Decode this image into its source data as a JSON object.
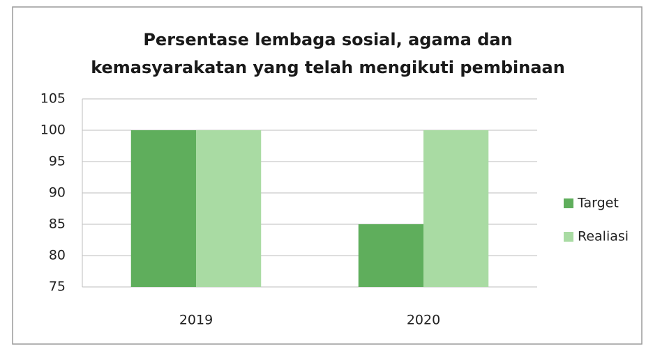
{
  "chart_data": {
    "type": "bar",
    "title": [
      "Persentase lembaga sosial, agama dan",
      "kemasyarakatan yang telah mengikuti pembinaan"
    ],
    "categories": [
      "2019",
      "2020"
    ],
    "series": [
      {
        "name": "Target",
        "color": "#5fae5c",
        "values": [
          100,
          85
        ]
      },
      {
        "name": "Realiasi",
        "color": "#a9dba3",
        "values": [
          100,
          100
        ]
      }
    ],
    "ylim": [
      75,
      105
    ],
    "yticks": [
      75,
      80,
      85,
      90,
      95,
      100,
      105
    ],
    "grid": true,
    "legend": "right"
  }
}
